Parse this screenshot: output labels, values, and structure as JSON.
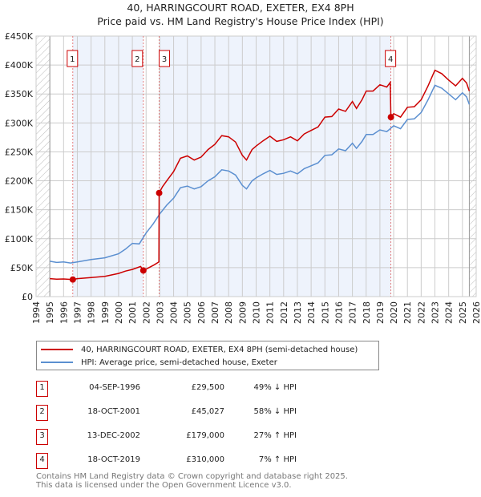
{
  "chart_data": {
    "type": "line",
    "title": "40, HARRINGCOURT ROAD, EXETER, EX4 8PH",
    "subtitle": "Price paid vs. HM Land Registry's House Price Index (HPI)",
    "xlim": [
      1994,
      2026
    ],
    "ylim": [
      0,
      450000
    ],
    "x_ticks": [
      "1994",
      "1995",
      "1996",
      "1997",
      "1998",
      "1999",
      "2000",
      "2001",
      "2002",
      "2003",
      "2004",
      "2005",
      "2006",
      "2007",
      "2008",
      "2009",
      "2010",
      "2011",
      "2012",
      "2013",
      "2014",
      "2015",
      "2016",
      "2017",
      "2018",
      "2019",
      "2020",
      "2021",
      "2022",
      "2023",
      "2024",
      "2025",
      "2026"
    ],
    "y_ticks": [
      {
        "v": 0,
        "label": "£0"
      },
      {
        "v": 50000,
        "label": "£50K"
      },
      {
        "v": 100000,
        "label": "£100K"
      },
      {
        "v": 150000,
        "label": "£150K"
      },
      {
        "v": 200000,
        "label": "£200K"
      },
      {
        "v": 250000,
        "label": "£250K"
      },
      {
        "v": 300000,
        "label": "£300K"
      },
      {
        "v": 350000,
        "label": "£350K"
      },
      {
        "v": 400000,
        "label": "£400K"
      },
      {
        "v": 450000,
        "label": "£450K"
      }
    ],
    "grid": true,
    "series": [
      {
        "name": "40, HARRINGCOURT ROAD, EXETER, EX4 8PH (semi-detached house)",
        "color": "#cc0000",
        "x": [
          1995,
          1995.5,
          1996,
          1996.67,
          1997,
          1998,
          1999,
          2000,
          2000.5,
          2001,
          2001.6,
          2001.8,
          2002.2,
          2002.6,
          2002.93,
          2002.95,
          2003.2,
          2003.5,
          2004,
          2004.5,
          2005,
          2005.5,
          2006,
          2006.5,
          2007,
          2007.5,
          2008,
          2008.5,
          2009,
          2009.3,
          2009.7,
          2010,
          2010.5,
          2011,
          2011.5,
          2012,
          2012.5,
          2013,
          2013.5,
          2014,
          2014.5,
          2015,
          2015.5,
          2016,
          2016.5,
          2017,
          2017.3,
          2017.7,
          2018,
          2018.5,
          2019,
          2019.5,
          2019.75,
          2019.8,
          2020,
          2020.5,
          2021,
          2021.5,
          2022,
          2022.5,
          2023,
          2023.5,
          2024,
          2024.5,
          2025,
          2025.3,
          2025.5
        ],
        "y": [
          31000,
          30000,
          30500,
          29500,
          31000,
          33000,
          35000,
          40000,
          44000,
          47000,
          52000,
          45027,
          50000,
          55000,
          60000,
          179000,
          190000,
          200000,
          216000,
          239000,
          243000,
          236000,
          241000,
          254000,
          263000,
          278000,
          276000,
          267000,
          244000,
          236000,
          254000,
          260000,
          269000,
          277000,
          268000,
          271000,
          276000,
          269000,
          281000,
          287000,
          293000,
          310000,
          311000,
          324000,
          320000,
          337000,
          325000,
          340000,
          355000,
          355000,
          366000,
          362000,
          370000,
          310000,
          316000,
          310000,
          327000,
          328000,
          340000,
          364000,
          391000,
          385000,
          374000,
          364000,
          377000,
          369000,
          355000
        ]
      },
      {
        "name": "HPI: Average price, semi-detached house, Exeter",
        "color": "#5b8fd0",
        "x": [
          1995,
          1995.5,
          1996,
          1996.5,
          1997,
          1998,
          1999,
          2000,
          2000.5,
          2001,
          2001.5,
          2002,
          2002.5,
          2003,
          2003.5,
          2004,
          2004.5,
          2005,
          2005.5,
          2006,
          2006.5,
          2007,
          2007.5,
          2008,
          2008.5,
          2009,
          2009.3,
          2009.7,
          2010,
          2010.5,
          2011,
          2011.5,
          2012,
          2012.5,
          2013,
          2013.5,
          2014,
          2014.5,
          2015,
          2015.5,
          2016,
          2016.5,
          2017,
          2017.3,
          2017.7,
          2018,
          2018.5,
          2019,
          2019.5,
          2020,
          2020.5,
          2021,
          2021.5,
          2022,
          2022.5,
          2023,
          2023.5,
          2024,
          2024.5,
          2025,
          2025.3,
          2025.5
        ],
        "y": [
          61000,
          59000,
          60000,
          58000,
          60000,
          64000,
          67000,
          74000,
          82000,
          92000,
          91000,
          110000,
          125000,
          143000,
          158000,
          170000,
          188000,
          191000,
          186000,
          190000,
          200000,
          207000,
          219000,
          217000,
          210000,
          192000,
          186000,
          200000,
          205000,
          212000,
          218000,
          211000,
          213000,
          217000,
          212000,
          221000,
          226000,
          231000,
          244000,
          245000,
          255000,
          252000,
          265000,
          256000,
          268000,
          280000,
          280000,
          288000,
          285000,
          295000,
          290000,
          306000,
          307000,
          318000,
          340000,
          365000,
          360000,
          350000,
          340000,
          352000,
          345000,
          332000
        ]
      }
    ],
    "sales": [
      {
        "label": "1",
        "x": 1996.67,
        "y": 29500
      },
      {
        "label": "2",
        "x": 2001.8,
        "y": 45027
      },
      {
        "label": "3",
        "x": 2002.95,
        "y": 179000
      },
      {
        "label": "4",
        "x": 2019.8,
        "y": 310000
      }
    ],
    "legend_placement": "below"
  },
  "legend": [
    "40, HARRINGCOURT ROAD, EXETER, EX4 8PH (semi-detached house)",
    "HPI: Average price, semi-detached house, Exeter"
  ],
  "transactions": [
    {
      "num": "1",
      "date": "04-SEP-1996",
      "price": "£29,500",
      "hpi": "49% ↓ HPI"
    },
    {
      "num": "2",
      "date": "18-OCT-2001",
      "price": "£45,027",
      "hpi": "58% ↓ HPI"
    },
    {
      "num": "3",
      "date": "13-DEC-2002",
      "price": "£179,000",
      "hpi": "27% ↑ HPI"
    },
    {
      "num": "4",
      "date": "18-OCT-2019",
      "price": "£310,000",
      "hpi": "7% ↑ HPI"
    }
  ],
  "footer": {
    "line1": "Contains HM Land Registry data © Crown copyright and database right 2025.",
    "line2": "This data is licensed under the Open Government Licence v3.0."
  }
}
